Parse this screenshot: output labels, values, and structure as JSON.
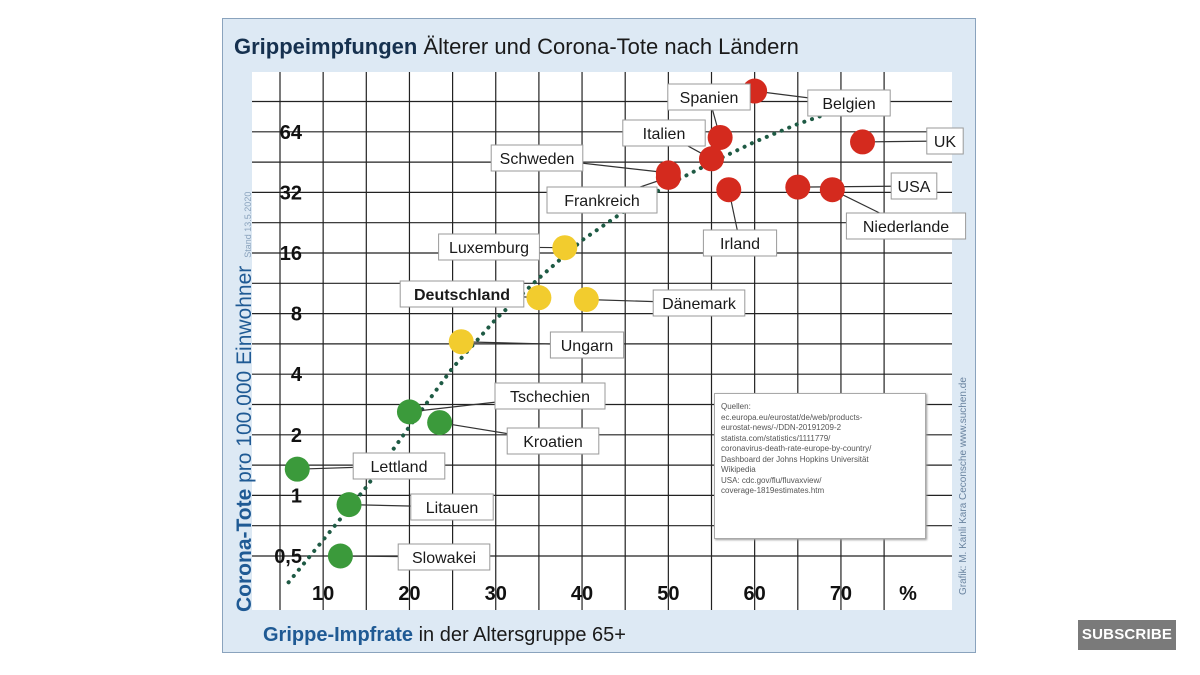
{
  "title_bold": "Grippeimpfungen",
  "title_rest": " Älterer und Corona-Tote nach Ländern",
  "y_axis_bold": "Corona-Tote",
  "y_axis_rest": " pro 100.000 Einwohner",
  "y_axis_note": "Stand 13.5.2020",
  "x_axis_bold": "Grippe-Impfrate",
  "x_axis_rest": " in der Altersgruppe 65+",
  "credit": "Grafik: M. Kanli   Kara Ceconsche   www.suchen.de",
  "sources_lines": [
    "Quellen:",
    "ec.europa.eu/eurostat/de/web/products-",
    "eurostat-news/-/DDN-20191209-2",
    "statista.com/statistics/1111779/",
    "coronavirus-death-rate-europe-by-country/",
    "Dashboard der Johns Hopkins Universität",
    "Wikipedia",
    "USA: cdc.gov/flu/fluvaxview/",
    "coverage-1819estimates.htm"
  ],
  "subscribe_label": "SUBSCRIBE",
  "colors": {
    "red": "#d42a1e",
    "yellow": "#f2cc2e",
    "green": "#3b9a3b",
    "trend": "#1e5a44"
  },
  "chart_data": {
    "type": "scatter",
    "title": "Grippeimpfungen Älterer und Corona-Tote nach Ländern",
    "xlabel": "Grippe-Impfrate in der Altersgruppe 65+",
    "ylabel": "Corona-Tote pro 100.000 Einwohner",
    "x_unit": "%",
    "y_scale": "log2",
    "xlim": [
      0,
      75
    ],
    "ylim": [
      0.35,
      130
    ],
    "x_ticks": [
      10,
      20,
      30,
      40,
      50,
      60,
      70
    ],
    "y_ticks": [
      0.5,
      1,
      2,
      4,
      8,
      16,
      32,
      64
    ],
    "y_tick_labels": [
      "0,5",
      "1",
      "2",
      "4",
      "8",
      "16",
      "32",
      "64"
    ],
    "grid": true,
    "points": [
      {
        "name": "Spanien",
        "x": 56,
        "y": 60,
        "group": "red"
      },
      {
        "name": "Belgien",
        "x": 60,
        "y": 102,
        "group": "red"
      },
      {
        "name": "UK",
        "x": 72.5,
        "y": 57,
        "group": "red"
      },
      {
        "name": "Italien",
        "x": 55,
        "y": 47,
        "group": "red"
      },
      {
        "name": "Schweden",
        "x": 50,
        "y": 40,
        "group": "red"
      },
      {
        "name": "Frankreich",
        "x": 50,
        "y": 38,
        "group": "red"
      },
      {
        "name": "Irland",
        "x": 57,
        "y": 33,
        "group": "red"
      },
      {
        "name": "USA",
        "x": 65,
        "y": 34,
        "group": "red"
      },
      {
        "name": "Niederlande",
        "x": 69,
        "y": 33,
        "group": "red"
      },
      {
        "name": "Luxemburg",
        "x": 38,
        "y": 17,
        "group": "yellow"
      },
      {
        "name": "Deutschland",
        "x": 35,
        "y": 9.6,
        "group": "yellow"
      },
      {
        "name": "Dänemark",
        "x": 40.5,
        "y": 9.4,
        "group": "yellow"
      },
      {
        "name": "Ungarn",
        "x": 26,
        "y": 5.8,
        "group": "yellow"
      },
      {
        "name": "Tschechien",
        "x": 20,
        "y": 2.6,
        "group": "green"
      },
      {
        "name": "Kroatien",
        "x": 23.5,
        "y": 2.3,
        "group": "green"
      },
      {
        "name": "Lettland",
        "x": 7,
        "y": 1.35,
        "group": "green"
      },
      {
        "name": "Litauen",
        "x": 13,
        "y": 0.9,
        "group": "green"
      },
      {
        "name": "Slowakei",
        "x": 12,
        "y": 0.5,
        "group": "green"
      }
    ],
    "trend": {
      "style": "dotted",
      "x": [
        6,
        10,
        15,
        20,
        25,
        30,
        35,
        40,
        45,
        50,
        55,
        60,
        65,
        70,
        73
      ],
      "y": [
        0.37,
        0.6,
        1.1,
        2.2,
        4.3,
        7.5,
        12,
        18.5,
        26,
        35,
        45,
        57,
        70,
        83,
        91
      ]
    }
  }
}
